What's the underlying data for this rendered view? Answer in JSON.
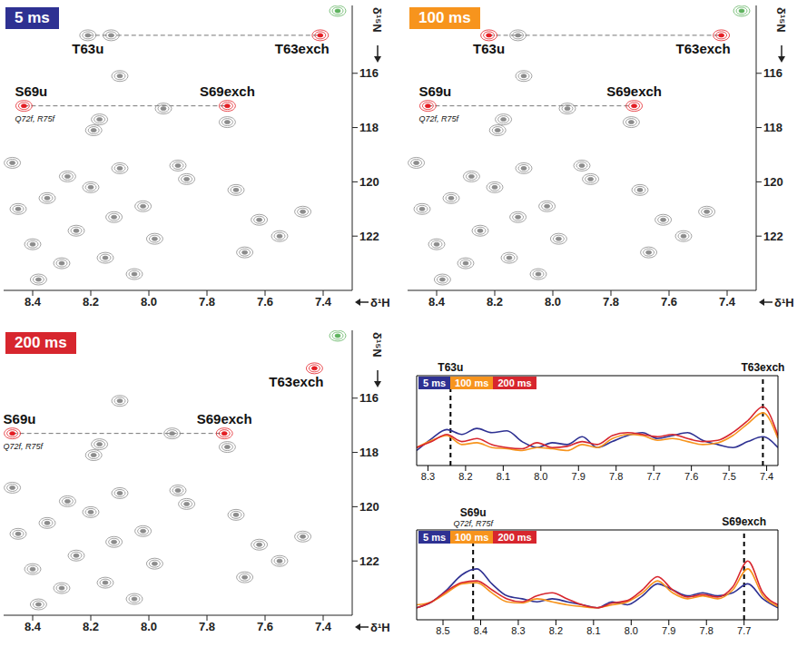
{
  "chart_data": [
    {
      "type": "scatter",
      "title": "5 ms",
      "color": "#2e3192",
      "x_label": "δ¹H",
      "y_label": "δ¹⁵N",
      "xlim": [
        8.5,
        7.3
      ],
      "xticks": [
        8.4,
        8.2,
        {
          "value": 8,
          "label": "8.0"
        },
        7.8,
        7.6,
        7.4
      ],
      "ylim": [
        124,
        113.5
      ],
      "yticks": [
        116,
        118,
        120,
        122
      ],
      "series": [
        {
          "color": "#8c8c8c",
          "values": [
            {
              "x": 8.21,
              "y": 114.6,
              "label": "T63u"
            },
            {
              "x": 8.13,
              "y": 114.6
            },
            {
              "x": 8.1,
              "y": 116.1
            },
            {
              "x": 8.17,
              "y": 117.7
            },
            {
              "x": 8.19,
              "y": 118.1
            },
            {
              "x": 7.95,
              "y": 117.3
            },
            {
              "x": 7.73,
              "y": 117.8
            },
            {
              "x": 7.9,
              "y": 119.4
            },
            {
              "x": 7.87,
              "y": 119.9
            },
            {
              "x": 7.7,
              "y": 120.3
            },
            {
              "x": 7.62,
              "y": 121.4
            },
            {
              "x": 7.67,
              "y": 122.6
            },
            {
              "x": 7.47,
              "y": 121.1
            },
            {
              "x": 7.55,
              "y": 122.0
            },
            {
              "x": 8.45,
              "y": 121.0
            },
            {
              "x": 8.4,
              "y": 122.3
            },
            {
              "x": 8.35,
              "y": 120.6
            },
            {
              "x": 8.3,
              "y": 123.0
            },
            {
              "x": 8.25,
              "y": 121.8
            },
            {
              "x": 8.2,
              "y": 120.2
            },
            {
              "x": 8.15,
              "y": 122.8
            },
            {
              "x": 8.12,
              "y": 121.3
            },
            {
              "x": 8.05,
              "y": 123.4
            },
            {
              "x": 8.02,
              "y": 120.9
            },
            {
              "x": 7.98,
              "y": 122.1
            },
            {
              "x": 8.38,
              "y": 123.6
            },
            {
              "x": 8.28,
              "y": 119.8
            },
            {
              "x": 8.47,
              "y": 119.3
            },
            {
              "x": 8.1,
              "y": 119.5
            }
          ]
        },
        {
          "color": "#5fb35f",
          "values": [
            {
              "x": 7.35,
              "y": 113.7
            }
          ]
        },
        {
          "color": "#e31e24",
          "values": [
            {
              "x": 8.43,
              "y": 117.2,
              "label": "S69u",
              "note": "Q72f, R75f"
            },
            {
              "x": 7.73,
              "y": 117.2,
              "label": "S69exch"
            },
            {
              "x": 7.41,
              "y": 114.6,
              "label": "T63exch"
            }
          ]
        }
      ],
      "guides": [
        {
          "x": [
            8.21,
            7.41
          ],
          "y": 114.6
        },
        {
          "x": [
            8.43,
            7.73
          ],
          "y": 117.2
        }
      ]
    },
    {
      "type": "scatter",
      "title": "100 ms",
      "color": "#f7941d",
      "x_label": "δ¹H",
      "y_label": "δ¹⁵N",
      "xlim": [
        8.5,
        7.3
      ],
      "xticks": [
        8.4,
        8.2,
        {
          "value": 8,
          "label": "8.0"
        },
        7.8,
        7.6,
        7.4
      ],
      "ylim": [
        124,
        113.5
      ],
      "yticks": [
        116,
        118,
        120,
        122
      ],
      "series": [
        {
          "color": "#8c8c8c",
          "values": [
            {
              "x": 8.12,
              "y": 114.6
            },
            {
              "x": 8.1,
              "y": 116.1
            },
            {
              "x": 8.17,
              "y": 117.7
            },
            {
              "x": 8.19,
              "y": 118.1
            },
            {
              "x": 7.95,
              "y": 117.3
            },
            {
              "x": 7.73,
              "y": 117.8
            },
            {
              "x": 7.9,
              "y": 119.4
            },
            {
              "x": 7.87,
              "y": 119.9
            },
            {
              "x": 7.7,
              "y": 120.3
            },
            {
              "x": 7.62,
              "y": 121.4
            },
            {
              "x": 7.67,
              "y": 122.6
            },
            {
              "x": 7.47,
              "y": 121.1
            },
            {
              "x": 7.55,
              "y": 122.0
            },
            {
              "x": 8.45,
              "y": 121.0
            },
            {
              "x": 8.4,
              "y": 122.3
            },
            {
              "x": 8.35,
              "y": 120.6
            },
            {
              "x": 8.3,
              "y": 123.0
            },
            {
              "x": 8.25,
              "y": 121.8
            },
            {
              "x": 8.2,
              "y": 120.2
            },
            {
              "x": 8.15,
              "y": 122.8
            },
            {
              "x": 8.12,
              "y": 121.3
            },
            {
              "x": 8.05,
              "y": 123.4
            },
            {
              "x": 8.02,
              "y": 120.9
            },
            {
              "x": 7.98,
              "y": 122.1
            },
            {
              "x": 8.38,
              "y": 123.6
            },
            {
              "x": 8.28,
              "y": 119.8
            },
            {
              "x": 8.47,
              "y": 119.3
            },
            {
              "x": 8.1,
              "y": 119.5
            }
          ]
        },
        {
          "color": "#5fb35f",
          "values": [
            {
              "x": 7.35,
              "y": 113.7
            }
          ]
        },
        {
          "color": "#e31e24",
          "values": [
            {
              "x": 8.22,
              "y": 114.6,
              "label": "T63u"
            },
            {
              "x": 8.43,
              "y": 117.2,
              "label": "S69u",
              "note": "Q72f, R75f"
            },
            {
              "x": 7.72,
              "y": 117.2,
              "label": "S69exch"
            },
            {
              "x": 7.42,
              "y": 114.6,
              "label": "T63exch"
            }
          ]
        }
      ],
      "guides": [
        {
          "x": [
            8.22,
            7.42
          ],
          "y": 114.6
        },
        {
          "x": [
            8.43,
            7.72
          ],
          "y": 117.2
        }
      ]
    },
    {
      "type": "scatter",
      "title": "200 ms",
      "color": "#d7262e",
      "x_label": "δ¹H",
      "y_label": "δ¹⁵N",
      "xlim": [
        8.5,
        7.3
      ],
      "xticks": [
        8.4,
        8.2,
        {
          "value": 8,
          "label": "8.0"
        },
        7.8,
        7.6,
        7.4
      ],
      "ylim": [
        124,
        113.5
      ],
      "yticks": [
        116,
        118,
        120,
        122
      ],
      "series": [
        {
          "color": "#8c8c8c",
          "values": [
            {
              "x": 8.1,
              "y": 116.1
            },
            {
              "x": 8.17,
              "y": 117.7
            },
            {
              "x": 8.19,
              "y": 118.1
            },
            {
              "x": 7.92,
              "y": 117.3
            },
            {
              "x": 7.73,
              "y": 117.8
            },
            {
              "x": 7.9,
              "y": 119.4
            },
            {
              "x": 7.87,
              "y": 119.9
            },
            {
              "x": 7.7,
              "y": 120.3
            },
            {
              "x": 7.62,
              "y": 121.4
            },
            {
              "x": 7.67,
              "y": 122.6
            },
            {
              "x": 7.47,
              "y": 121.1
            },
            {
              "x": 7.55,
              "y": 122.0
            },
            {
              "x": 8.45,
              "y": 121.0
            },
            {
              "x": 8.4,
              "y": 122.3
            },
            {
              "x": 8.35,
              "y": 120.6
            },
            {
              "x": 8.3,
              "y": 123.0
            },
            {
              "x": 8.25,
              "y": 121.8
            },
            {
              "x": 8.2,
              "y": 120.2
            },
            {
              "x": 8.15,
              "y": 122.8
            },
            {
              "x": 8.12,
              "y": 121.3
            },
            {
              "x": 8.05,
              "y": 123.4
            },
            {
              "x": 8.02,
              "y": 120.9
            },
            {
              "x": 7.98,
              "y": 122.1
            },
            {
              "x": 8.38,
              "y": 123.6
            },
            {
              "x": 8.28,
              "y": 119.8
            },
            {
              "x": 8.47,
              "y": 119.3
            },
            {
              "x": 8.1,
              "y": 119.5
            }
          ]
        },
        {
          "color": "#5fb35f",
          "values": [
            {
              "x": 7.35,
              "y": 113.7
            }
          ]
        },
        {
          "color": "#e31e24",
          "values": [
            {
              "x": 8.47,
              "y": 117.3,
              "label": "S69u",
              "note": "Q72f, R75f"
            },
            {
              "x": 7.74,
              "y": 117.3,
              "label": "S69exch"
            },
            {
              "x": 7.43,
              "y": 114.9,
              "label": "T63exch"
            }
          ]
        }
      ],
      "guides": [
        {
          "x": [
            8.47,
            7.74
          ],
          "y": 117.3
        }
      ]
    },
    {
      "type": "line",
      "xlim": [
        8.33,
        7.37
      ],
      "xticks": [
        8.3,
        8.2,
        8.1,
        {
          "value": 8,
          "label": "8.0"
        },
        7.9,
        7.8,
        7.7,
        7.6,
        7.5,
        7.4
      ],
      "ylim": [
        0,
        1.5
      ],
      "tick_labels": "x",
      "legend": "top-left",
      "x": [
        8.33,
        8.29,
        8.25,
        8.21,
        8.17,
        8.13,
        8.09,
        8.05,
        8.01,
        7.97,
        7.93,
        7.89,
        7.85,
        7.81,
        7.77,
        7.73,
        7.69,
        7.65,
        7.61,
        7.57,
        7.53,
        7.49,
        7.45,
        7.41,
        7.37
      ],
      "series": [
        {
          "name": "5 ms",
          "color": "#2e3192",
          "values": [
            0.25,
            0.45,
            0.6,
            0.52,
            0.62,
            0.55,
            0.58,
            0.4,
            0.3,
            0.38,
            0.35,
            0.48,
            0.3,
            0.4,
            0.5,
            0.55,
            0.45,
            0.5,
            0.55,
            0.42,
            0.35,
            0.3,
            0.4,
            0.48,
            0.3
          ]
        },
        {
          "name": "100 ms",
          "color": "#f7941d",
          "values": [
            0.3,
            0.42,
            0.5,
            0.35,
            0.38,
            0.3,
            0.28,
            0.25,
            0.3,
            0.28,
            0.25,
            0.35,
            0.3,
            0.45,
            0.52,
            0.5,
            0.42,
            0.45,
            0.4,
            0.35,
            0.38,
            0.5,
            0.7,
            0.88,
            0.45
          ]
        },
        {
          "name": "200 ms",
          "color": "#d7262e",
          "values": [
            0.3,
            0.4,
            0.52,
            0.4,
            0.45,
            0.35,
            0.3,
            0.28,
            0.38,
            0.3,
            0.32,
            0.4,
            0.35,
            0.5,
            0.55,
            0.52,
            0.48,
            0.52,
            0.45,
            0.4,
            0.42,
            0.55,
            0.75,
            0.98,
            0.5
          ]
        }
      ],
      "markers": [
        {
          "x": 8.24,
          "label": "T63u"
        },
        {
          "x": 7.41,
          "label": "T63exch"
        }
      ]
    },
    {
      "type": "line",
      "xlim": [
        8.57,
        7.61
      ],
      "xticks": [
        8.5,
        8.4,
        8.3,
        8.2,
        8.1,
        {
          "value": 8,
          "label": "8.0"
        },
        7.9,
        7.8,
        7.7
      ],
      "ylim": [
        0,
        1.5
      ],
      "tick_labels": "x",
      "legend": "top-left",
      "x": [
        8.57,
        8.53,
        8.49,
        8.45,
        8.41,
        8.37,
        8.33,
        8.29,
        8.25,
        8.21,
        8.17,
        8.13,
        8.09,
        8.05,
        8.01,
        7.97,
        7.93,
        7.89,
        7.85,
        7.81,
        7.77,
        7.73,
        7.69,
        7.65,
        7.61
      ],
      "series": [
        {
          "name": "5 ms",
          "color": "#2e3192",
          "values": [
            0.2,
            0.3,
            0.5,
            0.75,
            0.85,
            0.6,
            0.4,
            0.35,
            0.3,
            0.35,
            0.3,
            0.25,
            0.2,
            0.3,
            0.25,
            0.4,
            0.6,
            0.5,
            0.4,
            0.45,
            0.4,
            0.45,
            0.6,
            0.35,
            0.2
          ]
        },
        {
          "name": "100 ms",
          "color": "#f7941d",
          "values": [
            0.25,
            0.3,
            0.45,
            0.6,
            0.62,
            0.45,
            0.3,
            0.28,
            0.35,
            0.3,
            0.25,
            0.22,
            0.2,
            0.25,
            0.3,
            0.45,
            0.65,
            0.45,
            0.35,
            0.4,
            0.35,
            0.5,
            0.85,
            0.4,
            0.22
          ]
        },
        {
          "name": "200 ms",
          "color": "#d7262e",
          "values": [
            0.2,
            0.3,
            0.48,
            0.62,
            0.65,
            0.5,
            0.35,
            0.3,
            0.4,
            0.45,
            0.35,
            0.25,
            0.2,
            0.28,
            0.32,
            0.5,
            0.72,
            0.5,
            0.38,
            0.42,
            0.38,
            0.55,
            0.98,
            0.45,
            0.25
          ]
        }
      ],
      "markers": [
        {
          "x": 8.42,
          "label": "S69u",
          "note": "Q72f, R75f"
        },
        {
          "x": 7.7,
          "label": "S69exch"
        }
      ]
    }
  ]
}
